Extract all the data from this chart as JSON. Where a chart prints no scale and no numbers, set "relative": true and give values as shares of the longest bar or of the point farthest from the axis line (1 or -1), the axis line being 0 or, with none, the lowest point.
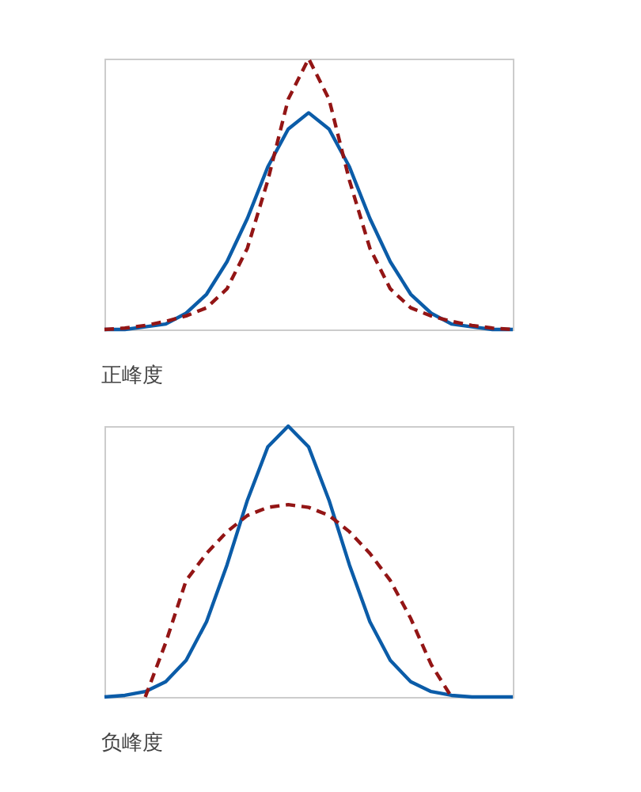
{
  "chart_data": [
    {
      "type": "line",
      "title": "正峰度",
      "relative": true,
      "tick_labels": false,
      "grid": false,
      "marker": "none",
      "categories": [
        null,
        null,
        null,
        null,
        null,
        null,
        null,
        null,
        null,
        null,
        null,
        null,
        null,
        null,
        null,
        null,
        null,
        null,
        null,
        null,
        null
      ],
      "series": [
        {
          "color": "#0b5ca8",
          "line_style": "solid",
          "values": [
            0,
            0,
            0.01,
            0.02,
            0.06,
            0.13,
            0.25,
            0.41,
            0.6,
            0.74,
            0.8,
            0.74,
            0.6,
            0.41,
            0.25,
            0.13,
            0.06,
            0.02,
            0.01,
            0,
            0
          ]
        },
        {
          "color": "#931515",
          "line_style": "dashed",
          "values": [
            0,
            0.005,
            0.015,
            0.03,
            0.05,
            0.08,
            0.15,
            0.3,
            0.55,
            0.85,
            1,
            0.85,
            0.55,
            0.3,
            0.15,
            0.08,
            0.05,
            0.03,
            0.015,
            0.005,
            0
          ]
        }
      ]
    },
    {
      "type": "line",
      "title": "负峰度",
      "relative": true,
      "tick_labels": false,
      "grid": false,
      "marker": "none",
      "categories": [
        null,
        null,
        null,
        null,
        null,
        null,
        null,
        null,
        null,
        null,
        null,
        null,
        null,
        null,
        null,
        null,
        null,
        null,
        null,
        null,
        null
      ],
      "series": [
        {
          "color": "#0b5ca8",
          "line_style": "solid",
          "values": [
            0,
            0.006,
            0.02,
            0.056,
            0.135,
            0.278,
            0.487,
            0.726,
            0.923,
            1,
            0.923,
            0.726,
            0.487,
            0.278,
            0.135,
            0.056,
            0.02,
            0.006,
            0,
            0,
            0
          ]
        },
        {
          "color": "#931515",
          "line_style": "dashed",
          "values": [
            null,
            null,
            0,
            0.2,
            0.43,
            0.53,
            0.61,
            0.67,
            0.7,
            0.71,
            0.7,
            0.67,
            0.61,
            0.53,
            0.43,
            0.29,
            0.12,
            0,
            null,
            null,
            null
          ]
        }
      ]
    }
  ]
}
